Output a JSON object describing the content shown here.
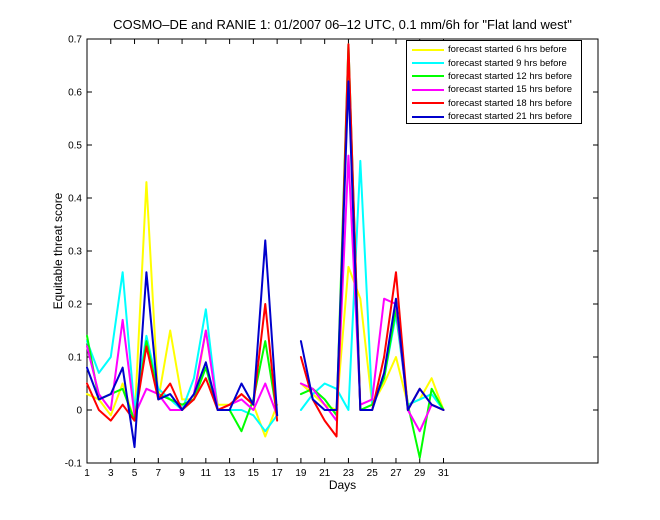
{
  "chart_data": {
    "type": "line",
    "title": "COSMO–DE and RANIE 1: 01/2007 06–12 UTC, 0.1 mm/6h for \"Flat land west\"",
    "xlabel": "Days",
    "ylabel": "Equitable threat score",
    "xlim": [
      1,
      44
    ],
    "ylim": [
      -0.1,
      0.7
    ],
    "xticks": [
      1,
      3,
      5,
      7,
      9,
      11,
      13,
      15,
      17,
      19,
      21,
      23,
      25,
      27,
      29,
      31
    ],
    "yticks": [
      -0.1,
      0,
      0.1,
      0.2,
      0.3,
      0.4,
      0.5,
      0.6,
      0.7
    ],
    "legend_position": "top-right",
    "x": [
      1,
      2,
      3,
      4,
      5,
      6,
      7,
      8,
      9,
      10,
      11,
      12,
      13,
      14,
      15,
      16,
      17,
      18,
      19,
      20,
      21,
      22,
      23,
      24,
      25,
      26,
      27,
      28,
      29,
      30,
      31
    ],
    "series": [
      {
        "name": "forecast started 6 hrs before",
        "color": "#ffff00",
        "values": [
          0.03,
          0.02,
          -0.01,
          0.05,
          -0.02,
          0.43,
          0.02,
          0.15,
          0.02,
          0.02,
          0.15,
          0.01,
          0.01,
          0.03,
          0.01,
          -0.05,
          0.01,
          null,
          0.05,
          0.03,
          0.01,
          0.0,
          0.27,
          0.21,
          0.01,
          0.05,
          0.1,
          0.01,
          0.02,
          0.06,
          0.0
        ]
      },
      {
        "name": "forecast started 9 hrs before",
        "color": "#00ffff",
        "values": [
          0.13,
          0.07,
          0.1,
          0.26,
          0.0,
          0.14,
          0.04,
          0.02,
          0.0,
          0.06,
          0.19,
          0.0,
          0.0,
          0.0,
          -0.01,
          -0.04,
          -0.01,
          null,
          0.0,
          0.03,
          0.05,
          0.04,
          0.0,
          0.47,
          0.01,
          0.06,
          0.18,
          0.01,
          0.02,
          0.03,
          0.0
        ]
      },
      {
        "name": "forecast started 12 hrs before",
        "color": "#00ff00",
        "values": [
          0.14,
          0.02,
          0.03,
          0.04,
          -0.02,
          0.13,
          0.03,
          0.02,
          0.01,
          0.02,
          0.08,
          0.0,
          0.0,
          -0.04,
          0.02,
          0.13,
          -0.01,
          null,
          0.03,
          0.04,
          0.02,
          -0.01,
          0.69,
          0.0,
          0.01,
          0.06,
          0.19,
          0.01,
          -0.09,
          0.04,
          0.0
        ]
      },
      {
        "name": "forecast started 15 hrs before",
        "color": "#ff00ff",
        "values": [
          0.12,
          0.03,
          0.0,
          0.17,
          -0.01,
          0.04,
          0.03,
          0.0,
          0.0,
          0.03,
          0.15,
          0.0,
          0.01,
          0.02,
          0.0,
          0.05,
          -0.01,
          null,
          0.05,
          0.04,
          0.01,
          -0.02,
          0.48,
          0.01,
          0.02,
          0.21,
          0.2,
          0.0,
          -0.04,
          0.01,
          0.0
        ]
      },
      {
        "name": "forecast started 18 hrs before",
        "color": "#ff0000",
        "values": [
          0.05,
          0.0,
          -0.02,
          0.01,
          -0.02,
          0.12,
          0.02,
          0.05,
          0.0,
          0.02,
          0.06,
          0.0,
          0.01,
          0.03,
          0.01,
          0.2,
          -0.02,
          null,
          0.1,
          0.02,
          -0.02,
          -0.05,
          0.69,
          0.0,
          0.0,
          0.1,
          0.26,
          0.0,
          0.04,
          0.01,
          0.0
        ]
      },
      {
        "name": "forecast started 21 hrs before",
        "color": "#0000cc",
        "values": [
          0.08,
          0.02,
          0.03,
          0.08,
          -0.07,
          0.26,
          0.02,
          0.03,
          0.0,
          0.03,
          0.09,
          0.0,
          0.0,
          0.05,
          0.01,
          0.32,
          -0.01,
          null,
          0.13,
          0.02,
          0.0,
          0.0,
          0.62,
          0.0,
          0.0,
          0.07,
          0.21,
          0.0,
          0.04,
          0.01,
          0.0
        ]
      }
    ]
  }
}
